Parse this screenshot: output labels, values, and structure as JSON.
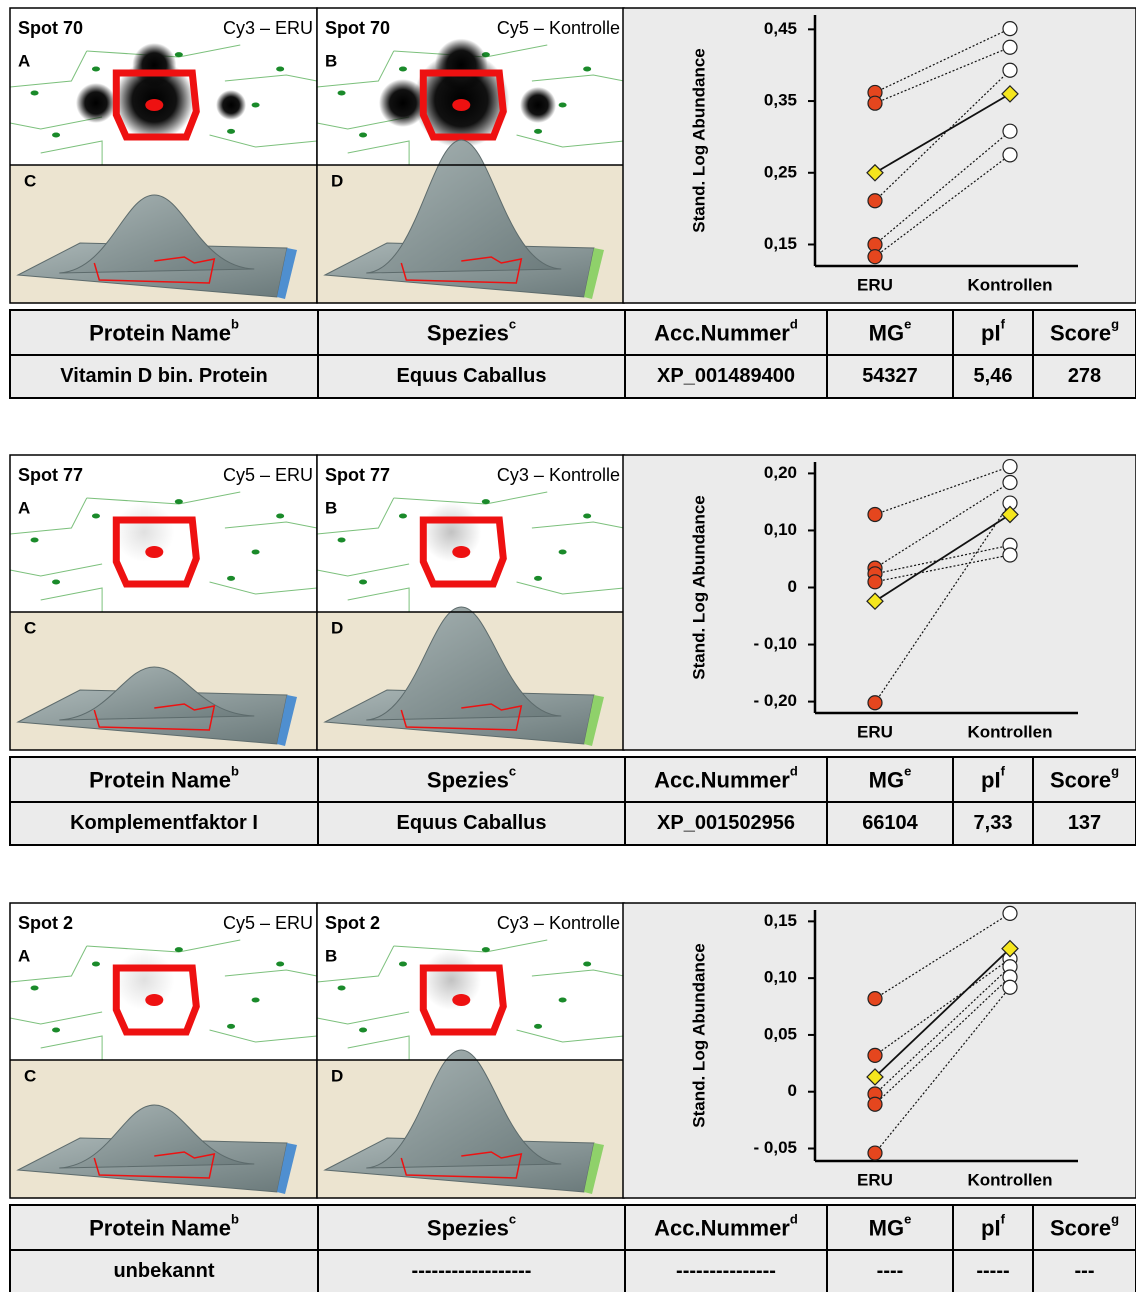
{
  "chart_data": [
    {
      "type": "line",
      "y_label": "Stand. Log Abundance",
      "categories": [
        "ERU",
        "Kontrollen"
      ],
      "ylim": [
        0.12,
        0.47
      ],
      "yticks": [
        {
          "value": 0.15,
          "label": "0,15"
        },
        {
          "value": 0.25,
          "label": "0,25"
        },
        {
          "value": 0.35,
          "label": "0,35"
        },
        {
          "value": 0.45,
          "label": "0,45"
        }
      ],
      "point_colors": [
        "#e5461e",
        "#ffffff"
      ],
      "series": [
        {
          "style": "dotted",
          "values": [
            0.362,
            0.451
          ]
        },
        {
          "style": "dotted",
          "values": [
            0.347,
            0.425
          ]
        },
        {
          "style": "dotted",
          "values": [
            0.211,
            0.393
          ]
        },
        {
          "style": "dotted",
          "values": [
            0.15,
            0.308
          ]
        },
        {
          "style": "dotted",
          "values": [
            0.133,
            0.275
          ]
        },
        {
          "style": "solid",
          "marker": "diamond",
          "color": "#f5e61e",
          "values": [
            0.25,
            0.36
          ]
        }
      ]
    },
    {
      "type": "line",
      "y_label": "Stand. Log Abundance",
      "categories": [
        "ERU",
        "Kontrollen"
      ],
      "ylim": [
        -0.22,
        0.22
      ],
      "yticks": [
        {
          "value": -0.2,
          "label": "- 0,20"
        },
        {
          "value": -0.1,
          "label": "- 0,10"
        },
        0,
        {
          "value": 0.1,
          "label": "0,10"
        },
        {
          "value": 0.2,
          "label": "0,20"
        }
      ],
      "point_colors": [
        "#e5461e",
        "#ffffff"
      ],
      "series": [
        {
          "style": "dotted",
          "values": [
            0.128,
            0.212
          ]
        },
        {
          "style": "dotted",
          "values": [
            0.034,
            0.184
          ]
        },
        {
          "style": "dotted",
          "values": [
            0.024,
            0.074
          ]
        },
        {
          "style": "dotted",
          "values": [
            0.01,
            0.057
          ]
        },
        {
          "style": "dotted",
          "values": [
            -0.202,
            0.148
          ]
        },
        {
          "style": "solid",
          "marker": "diamond",
          "color": "#f5e61e",
          "values": [
            -0.024,
            0.128
          ]
        }
      ]
    },
    {
      "type": "line",
      "y_label": "Stand. Log Abundance",
      "categories": [
        "ERU",
        "Kontrollen"
      ],
      "ylim": [
        -0.061,
        0.16
      ],
      "yticks": [
        {
          "value": -0.05,
          "label": "- 0,05"
        },
        0,
        {
          "value": 0.05,
          "label": "0,05"
        },
        {
          "value": 0.1,
          "label": "0,10"
        },
        {
          "value": 0.15,
          "label": "0,15"
        }
      ],
      "point_colors": [
        "#e5461e",
        "#ffffff"
      ],
      "series": [
        {
          "style": "dotted",
          "values": [
            0.082,
            0.157
          ]
        },
        {
          "style": "dotted",
          "values": [
            0.032,
            0.117
          ]
        },
        {
          "style": "dotted",
          "values": [
            -0.002,
            0.11
          ]
        },
        {
          "style": "dotted",
          "values": [
            -0.011,
            0.101
          ]
        },
        {
          "style": "dotted",
          "values": [
            -0.054,
            0.092
          ]
        },
        {
          "style": "solid",
          "marker": "diamond",
          "color": "#f5e61e",
          "values": [
            0.013,
            0.126
          ]
        }
      ]
    }
  ],
  "panels": [
    {
      "images": [
        {
          "spot": "Spot 70",
          "channel": "Cy3 – ERU",
          "top_letter": "A",
          "bottom_letter": "C"
        },
        {
          "spot": "Spot 70",
          "channel": "Cy5 – Kontrolle",
          "top_letter": "B",
          "bottom_letter": "D"
        }
      ],
      "table": {
        "header": [
          {
            "text": "Protein Name",
            "sup": "b"
          },
          {
            "text": "Spezies",
            "sup": "c"
          },
          {
            "text": "Acc.Nummer",
            "sup": "d"
          },
          {
            "text": "MG",
            "sup": "e"
          },
          {
            "text": "pI",
            "sup": "f"
          },
          {
            "text": "Score",
            "sup": "g"
          }
        ],
        "row": [
          "Vitamin D bin. Protein",
          "Equus Caballus",
          "XP_001489400",
          "54327",
          "5,46",
          "278"
        ]
      }
    },
    {
      "images": [
        {
          "spot": "Spot 77",
          "channel": "Cy5 – ERU",
          "top_letter": "A",
          "bottom_letter": "C"
        },
        {
          "spot": "Spot 77",
          "channel": "Cy3 – Kontrolle",
          "top_letter": "B",
          "bottom_letter": "D"
        }
      ],
      "table": {
        "header": [
          {
            "text": "Protein Name",
            "sup": "b"
          },
          {
            "text": "Spezies",
            "sup": "c"
          },
          {
            "text": "Acc.Nummer",
            "sup": "d"
          },
          {
            "text": "MG",
            "sup": "e"
          },
          {
            "text": "pI",
            "sup": "f"
          },
          {
            "text": "Score",
            "sup": "g"
          }
        ],
        "row": [
          "Komplementfaktor I",
          "Equus Caballus",
          "XP_001502956",
          "66104",
          "7,33",
          "137"
        ]
      }
    },
    {
      "images": [
        {
          "spot": "Spot 2",
          "channel": "Cy5 – ERU",
          "top_letter": "A",
          "bottom_letter": "C"
        },
        {
          "spot": "Spot 2",
          "channel": "Cy3 – Kontrolle",
          "top_letter": "B",
          "bottom_letter": "D"
        }
      ],
      "table": {
        "header": [
          {
            "text": "Protein Name",
            "sup": "b"
          },
          {
            "text": "Spezies",
            "sup": "c"
          },
          {
            "text": "Acc.Nummer",
            "sup": "d"
          },
          {
            "text": "MG",
            "sup": "e"
          },
          {
            "text": "pI",
            "sup": "f"
          },
          {
            "text": "Score",
            "sup": "g"
          }
        ],
        "row": [
          "unbekannt",
          "------------------",
          "---------------",
          "----",
          "-----",
          "---"
        ]
      }
    }
  ]
}
